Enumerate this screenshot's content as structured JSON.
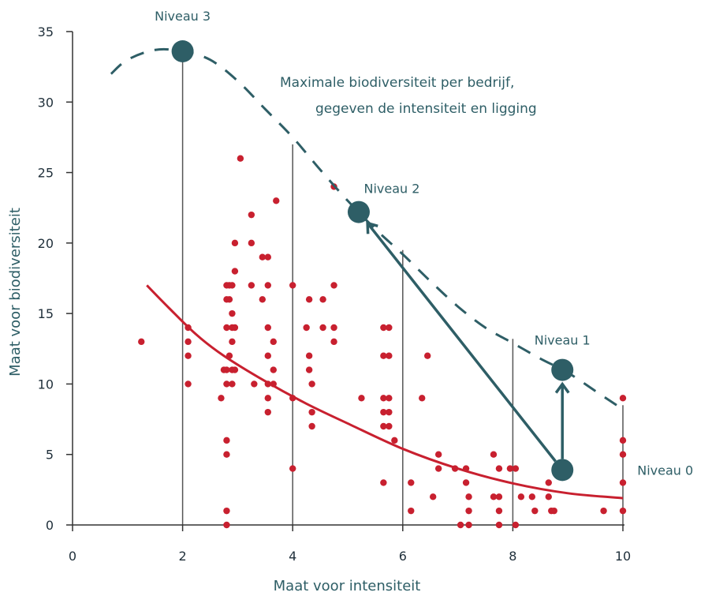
{
  "colors": {
    "teal": "#2e5e66",
    "red": "#c8202f",
    "axis": "#333333",
    "vline": "#555555"
  },
  "chart_data": {
    "type": "scatter",
    "xlabel": "Maat voor intensiteit",
    "ylabel": "Maat voor biodiversiteit",
    "xlim": [
      0,
      10
    ],
    "ylim": [
      0,
      35
    ],
    "x_ticks": [
      0,
      2,
      4,
      6,
      8,
      10
    ],
    "y_ticks": [
      0,
      5,
      10,
      15,
      20,
      25,
      30,
      35
    ],
    "grid": false,
    "annotation": {
      "line1": "Maximale biodiversiteit per bedrijf,",
      "line2": "gegeven de intensiteit en ligging"
    },
    "vertical_lines": [
      {
        "x": 2,
        "top": 33.6
      },
      {
        "x": 4,
        "top": 27
      },
      {
        "x": 6,
        "top": 19.5
      },
      {
        "x": 8,
        "top": 13.2
      },
      {
        "x": 10,
        "top": 8.5
      }
    ],
    "max_curve": [
      {
        "x": 0.7,
        "y": 32.0
      },
      {
        "x": 1.0,
        "y": 33.0
      },
      {
        "x": 1.5,
        "y": 33.7
      },
      {
        "x": 2.0,
        "y": 33.6
      },
      {
        "x": 2.5,
        "y": 33.0
      },
      {
        "x": 3.0,
        "y": 31.5
      },
      {
        "x": 3.5,
        "y": 29.5
      },
      {
        "x": 4.0,
        "y": 27.5
      },
      {
        "x": 4.5,
        "y": 25.2
      },
      {
        "x": 5.0,
        "y": 23.0
      },
      {
        "x": 5.5,
        "y": 21.0
      },
      {
        "x": 6.0,
        "y": 19.2
      },
      {
        "x": 6.5,
        "y": 17.3
      },
      {
        "x": 7.0,
        "y": 15.5
      },
      {
        "x": 7.5,
        "y": 14.0
      },
      {
        "x": 8.0,
        "y": 12.9
      },
      {
        "x": 8.5,
        "y": 11.8
      },
      {
        "x": 9.0,
        "y": 10.8
      },
      {
        "x": 9.5,
        "y": 9.5
      },
      {
        "x": 10.0,
        "y": 8.2
      }
    ],
    "trend_curve": [
      {
        "x": 1.35,
        "y": 17.0
      },
      {
        "x": 1.75,
        "y": 15.4
      },
      {
        "x": 2.25,
        "y": 13.5
      },
      {
        "x": 2.75,
        "y": 12.0
      },
      {
        "x": 3.5,
        "y": 10.2
      },
      {
        "x": 4.25,
        "y": 8.6
      },
      {
        "x": 5.0,
        "y": 7.2
      },
      {
        "x": 6.0,
        "y": 5.4
      },
      {
        "x": 7.0,
        "y": 4.0
      },
      {
        "x": 8.0,
        "y": 2.95
      },
      {
        "x": 9.0,
        "y": 2.25
      },
      {
        "x": 10.0,
        "y": 1.9
      }
    ],
    "levels": [
      {
        "label": "Niveau 0",
        "x": 8.9,
        "y": 3.9,
        "label_dx": 95,
        "label_dy": 0,
        "anchor": "start"
      },
      {
        "label": "Niveau 1",
        "x": 8.9,
        "y": 11.0,
        "label_dx": 0,
        "label_dy": -38,
        "anchor": "middle"
      },
      {
        "label": "Niveau 2",
        "x": 5.2,
        "y": 22.2,
        "label_dx": 42,
        "label_dy": -30,
        "anchor": "middle"
      },
      {
        "label": "Niveau 3",
        "x": 2.0,
        "y": 33.6,
        "label_dx": 0,
        "label_dy": -45,
        "anchor": "middle"
      }
    ],
    "arrows": [
      {
        "from": {
          "x": 8.9,
          "y": 3.9
        },
        "to": {
          "x": 8.9,
          "y": 11.0
        }
      },
      {
        "from": {
          "x": 8.9,
          "y": 3.9
        },
        "to": {
          "x": 5.2,
          "y": 22.2
        }
      }
    ],
    "points": [
      [
        1.25,
        13
      ],
      [
        2.1,
        14
      ],
      [
        2.1,
        13
      ],
      [
        2.1,
        12
      ],
      [
        2.1,
        10
      ],
      [
        2.7,
        9
      ],
      [
        2.75,
        11
      ],
      [
        2.8,
        17
      ],
      [
        2.85,
        17
      ],
      [
        2.9,
        17
      ],
      [
        2.8,
        16
      ],
      [
        2.85,
        16
      ],
      [
        2.9,
        15
      ],
      [
        2.8,
        14
      ],
      [
        2.9,
        14
      ],
      [
        2.95,
        14
      ],
      [
        2.9,
        13
      ],
      [
        2.85,
        12
      ],
      [
        2.8,
        11
      ],
      [
        2.9,
        11
      ],
      [
        2.95,
        11
      ],
      [
        2.8,
        10
      ],
      [
        2.9,
        10
      ],
      [
        2.95,
        18
      ],
      [
        2.95,
        20
      ],
      [
        2.8,
        6
      ],
      [
        2.8,
        5
      ],
      [
        2.8,
        1
      ],
      [
        2.8,
        0
      ],
      [
        3.05,
        26
      ],
      [
        3.25,
        22
      ],
      [
        3.25,
        20
      ],
      [
        3.25,
        17
      ],
      [
        3.3,
        10
      ],
      [
        3.45,
        19
      ],
      [
        3.55,
        19
      ],
      [
        3.45,
        16
      ],
      [
        3.55,
        17
      ],
      [
        3.55,
        14
      ],
      [
        3.55,
        12
      ],
      [
        3.55,
        10
      ],
      [
        3.55,
        9
      ],
      [
        3.55,
        8
      ],
      [
        3.65,
        10
      ],
      [
        3.65,
        11
      ],
      [
        3.65,
        13
      ],
      [
        3.7,
        23
      ],
      [
        4.0,
        17
      ],
      [
        4.0,
        9
      ],
      [
        4.0,
        4
      ],
      [
        4.25,
        14
      ],
      [
        4.3,
        16
      ],
      [
        4.3,
        12
      ],
      [
        4.3,
        11
      ],
      [
        4.35,
        10
      ],
      [
        4.35,
        8
      ],
      [
        4.35,
        7
      ],
      [
        4.55,
        16
      ],
      [
        4.55,
        14
      ],
      [
        4.75,
        24
      ],
      [
        4.75,
        17
      ],
      [
        4.75,
        14
      ],
      [
        4.75,
        13
      ],
      [
        5.25,
        9
      ],
      [
        5.65,
        14
      ],
      [
        5.75,
        14
      ],
      [
        5.65,
        12
      ],
      [
        5.75,
        12
      ],
      [
        5.65,
        9
      ],
      [
        5.75,
        9
      ],
      [
        5.65,
        8
      ],
      [
        5.75,
        8
      ],
      [
        5.65,
        7
      ],
      [
        5.75,
        7
      ],
      [
        5.85,
        6
      ],
      [
        5.65,
        3
      ],
      [
        6.15,
        3
      ],
      [
        6.15,
        1
      ],
      [
        6.35,
        9
      ],
      [
        6.45,
        12
      ],
      [
        6.55,
        2
      ],
      [
        6.65,
        5
      ],
      [
        6.65,
        4
      ],
      [
        6.95,
        4
      ],
      [
        7.05,
        0
      ],
      [
        7.15,
        4
      ],
      [
        7.15,
        3
      ],
      [
        7.2,
        2
      ],
      [
        7.2,
        1
      ],
      [
        7.2,
        0
      ],
      [
        7.65,
        5
      ],
      [
        7.65,
        2
      ],
      [
        7.75,
        2
      ],
      [
        7.75,
        4
      ],
      [
        7.75,
        1
      ],
      [
        7.75,
        0
      ],
      [
        7.95,
        4
      ],
      [
        8.05,
        4
      ],
      [
        8.05,
        0
      ],
      [
        8.15,
        2
      ],
      [
        8.35,
        2
      ],
      [
        8.4,
        1
      ],
      [
        8.65,
        2
      ],
      [
        8.65,
        3
      ],
      [
        8.7,
        1
      ],
      [
        8.75,
        1
      ],
      [
        9.65,
        1
      ],
      [
        10.0,
        9
      ],
      [
        10.0,
        6
      ],
      [
        10.0,
        5
      ],
      [
        10.0,
        3
      ],
      [
        10.0,
        1
      ]
    ]
  }
}
